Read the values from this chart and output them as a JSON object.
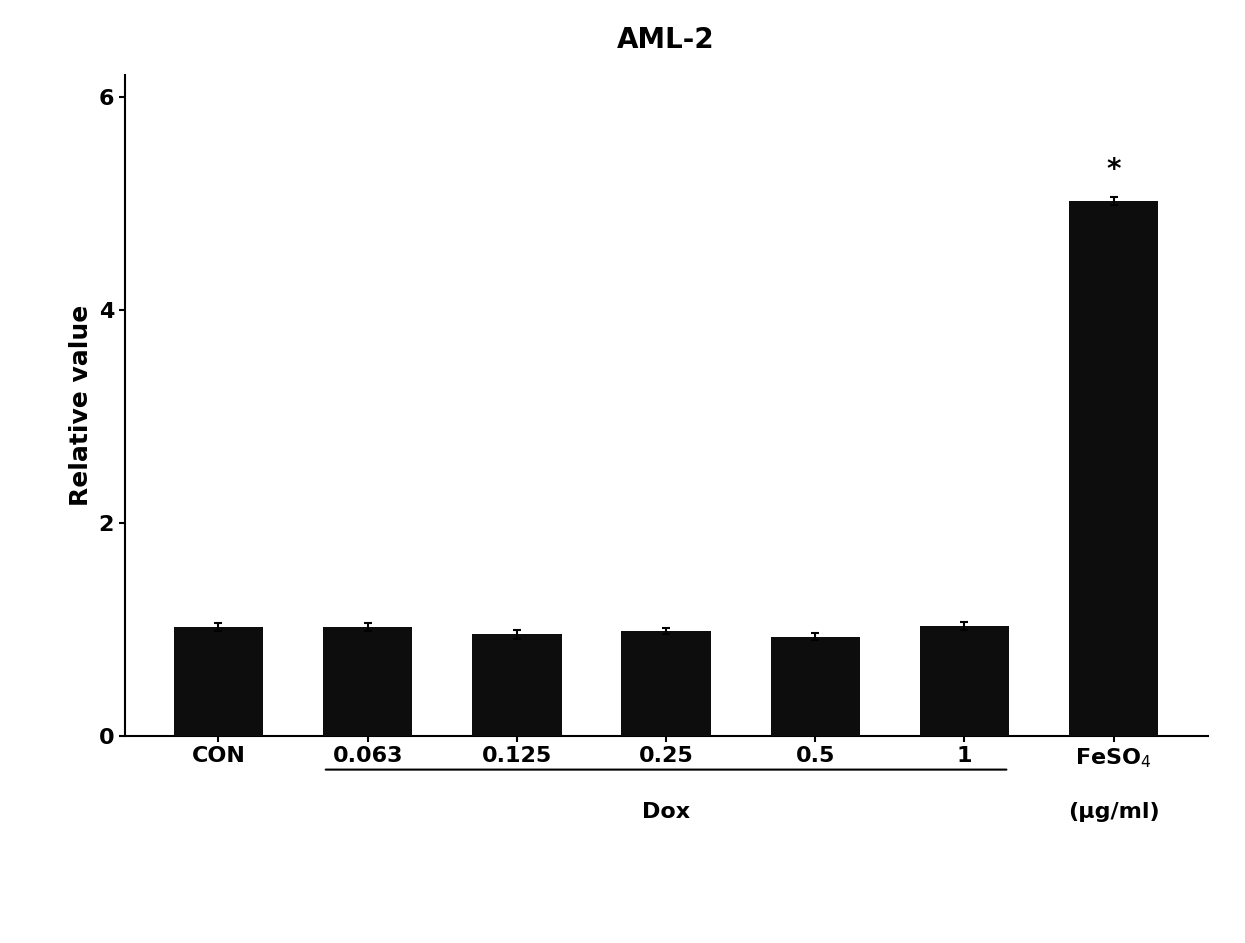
{
  "title": "AML-2",
  "ylabel": "Relative value",
  "categories": [
    "CON",
    "0.063",
    "0.125",
    "0.25",
    "0.5",
    "1",
    "FeSO$_4$"
  ],
  "tick_labels_display": [
    "CON",
    "0.063",
    "0.125",
    "0.25",
    "0.5",
    "1",
    "FeSO$_4$"
  ],
  "values": [
    1.02,
    1.02,
    0.95,
    0.98,
    0.93,
    1.03,
    5.02
  ],
  "errors": [
    0.04,
    0.04,
    0.04,
    0.03,
    0.03,
    0.04,
    0.04
  ],
  "bar_color": "#0d0d0d",
  "ylim": [
    0,
    6.2
  ],
  "yticks": [
    0,
    2,
    4,
    6
  ],
  "dox_label": "Dox",
  "feso4_sublabel": "(μg/ml)",
  "star_label": "*",
  "background_color": "#ffffff",
  "bar_width": 0.6,
  "title_fontsize": 20,
  "ylabel_fontsize": 18,
  "tick_fontsize": 16,
  "annotation_fontsize": 20
}
